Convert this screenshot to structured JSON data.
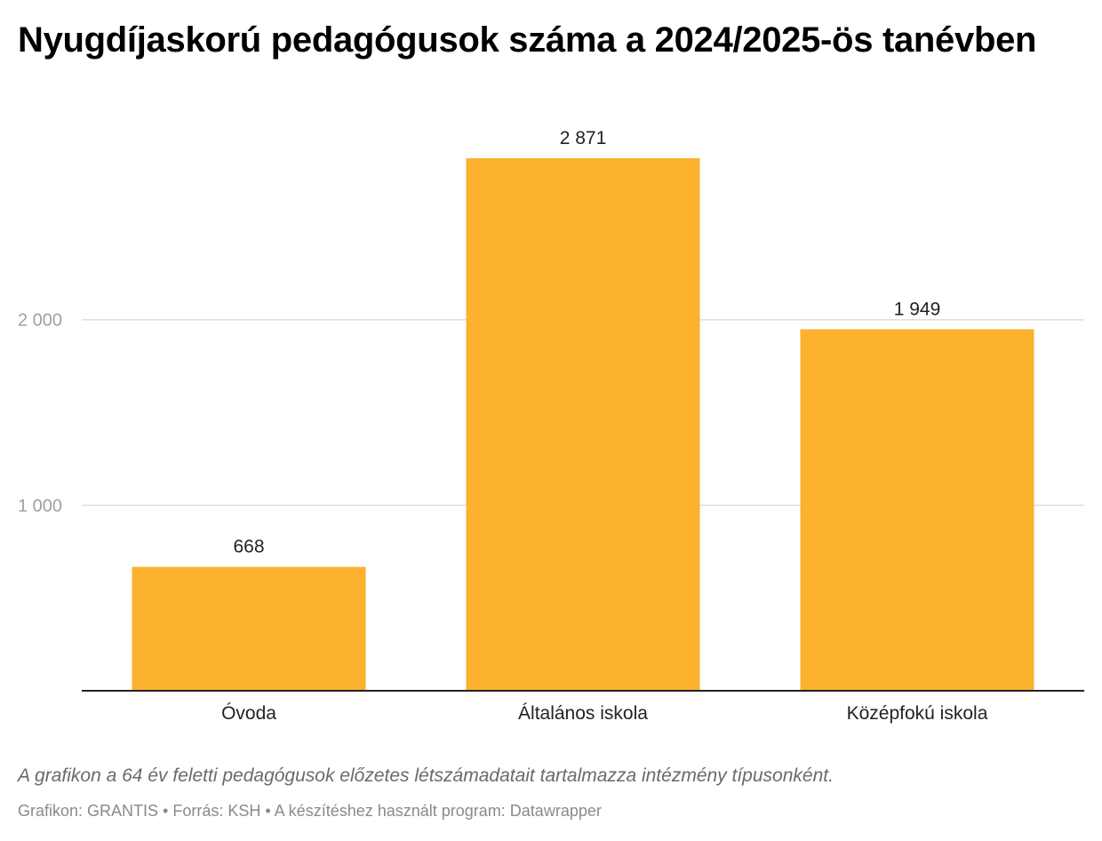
{
  "header": {
    "title": "Nyugdíjaskorú pedagógusok száma a 2024/2025-ös tanévben"
  },
  "chart_data": {
    "type": "bar",
    "categories": [
      "Óvoda",
      "Általános iskola",
      "Középfokú iskola"
    ],
    "values": [
      668,
      2871,
      1949
    ],
    "value_labels": [
      "668",
      "2 871",
      "1 949"
    ],
    "yticks": [
      1000,
      2000
    ],
    "ytick_labels": [
      "1 000",
      "2 000"
    ],
    "ylim": [
      0,
      2871
    ],
    "grid": true,
    "bar_color": "#fcb12f",
    "title": "Nyugdíjaskorú pedagógusok száma a 2024/2025-ös tanévben",
    "xlabel": "",
    "ylabel": ""
  },
  "footer": {
    "notes": "A grafikon a 64 év feletti pedagógusok előzetes létszámadatait tartalmazza intézmény típusonként.",
    "source": "Grafikon: GRANTIS • Forrás: KSH • A készítéshez használt program: Datawrapper"
  }
}
